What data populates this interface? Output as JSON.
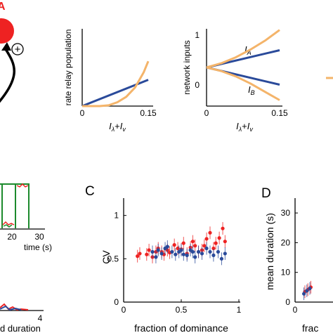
{
  "colors": {
    "red": "#ee2222",
    "blue": "#2a4a9a",
    "orange": "#f4b46a",
    "green": "#1c8a2c",
    "black": "#000000"
  },
  "panel_a": {
    "label": "A",
    "plus_sign": "+"
  },
  "panel_c": {
    "label": "C"
  },
  "panel_d": {
    "label": "D"
  },
  "fragments": {
    "time_label": "time (s)",
    "time_ticks": [
      "20",
      "30"
    ],
    "duration_label": "d duration",
    "duration_tick": "4"
  },
  "chart_data": [
    {
      "type": "line",
      "ylabel": "rate relay population",
      "xlabel_main": "I",
      "xlabel_sub1": "λ",
      "xlabel_plus": "+",
      "xlabel_sub2": "v",
      "xlim": [
        0,
        0.15
      ],
      "ylim": [
        0,
        1
      ],
      "xticks": [
        "0",
        "0.15"
      ],
      "series": [
        {
          "color": "blue",
          "x": [
            0,
            0.15
          ],
          "y": [
            0,
            0.34
          ]
        },
        {
          "color": "orange",
          "x": [
            0,
            0.04,
            0.06,
            0.08,
            0.1,
            0.12,
            0.14,
            0.15
          ],
          "y": [
            0,
            0,
            0.01,
            0.05,
            0.12,
            0.24,
            0.44,
            0.58
          ]
        }
      ]
    },
    {
      "type": "line",
      "ylabel": "network inputs",
      "xlabel_main": "I",
      "xlabel_sub1": "λ",
      "xlabel_plus": "+",
      "xlabel_sub2": "v",
      "xlim": [
        0,
        0.15
      ],
      "ylim": [
        -0.2,
        1.1
      ],
      "xticks": [
        "0",
        "0.15"
      ],
      "yticks": [
        "0",
        "1"
      ],
      "annotations": [
        {
          "main": "I",
          "sub": "A"
        },
        {
          "main": "I",
          "sub": "B"
        }
      ],
      "series": [
        {
          "color": "blue",
          "x": [
            0,
            0.15
          ],
          "y": [
            0.45,
            0.74
          ]
        },
        {
          "color": "blue",
          "x": [
            0,
            0.15
          ],
          "y": [
            0.45,
            0.16
          ]
        },
        {
          "color": "orange",
          "x": [
            0,
            0.03,
            0.06,
            0.09,
            0.12,
            0.15
          ],
          "y": [
            0.45,
            0.52,
            0.62,
            0.75,
            0.9,
            1.08
          ]
        },
        {
          "color": "orange",
          "x": [
            0,
            0.03,
            0.06,
            0.09,
            0.12,
            0.15
          ],
          "y": [
            0.45,
            0.39,
            0.3,
            0.18,
            0.04,
            -0.1
          ]
        }
      ]
    },
    {
      "type": "scatter",
      "ylabel": "CV",
      "xlabel": "fraction of dominance",
      "xlim": [
        0,
        1
      ],
      "ylim": [
        0,
        1.2
      ],
      "xticks": [
        "0",
        "0.5",
        "1"
      ],
      "yticks": [
        "0",
        "0.5",
        "1"
      ],
      "series": [
        {
          "color": "red",
          "points": [
            [
              0.12,
              0.53
            ],
            [
              0.14,
              0.56
            ],
            [
              0.2,
              0.55
            ],
            [
              0.22,
              0.6
            ],
            [
              0.25,
              0.52
            ],
            [
              0.28,
              0.58
            ],
            [
              0.3,
              0.62
            ],
            [
              0.33,
              0.58
            ],
            [
              0.35,
              0.55
            ],
            [
              0.38,
              0.6
            ],
            [
              0.4,
              0.57
            ],
            [
              0.44,
              0.66
            ],
            [
              0.47,
              0.62
            ],
            [
              0.5,
              0.61
            ],
            [
              0.52,
              0.68
            ],
            [
              0.55,
              0.56
            ],
            [
              0.58,
              0.63
            ],
            [
              0.6,
              0.7
            ],
            [
              0.62,
              0.65
            ],
            [
              0.65,
              0.58
            ],
            [
              0.68,
              0.6
            ],
            [
              0.7,
              0.65
            ],
            [
              0.72,
              0.73
            ],
            [
              0.75,
              0.8
            ],
            [
              0.78,
              0.62
            ],
            [
              0.8,
              0.68
            ],
            [
              0.83,
              0.74
            ],
            [
              0.86,
              0.85
            ],
            [
              0.88,
              0.7
            ]
          ]
        },
        {
          "color": "blue",
          "points": [
            [
              0.25,
              0.58
            ],
            [
              0.28,
              0.52
            ],
            [
              0.3,
              0.6
            ],
            [
              0.33,
              0.56
            ],
            [
              0.36,
              0.62
            ],
            [
              0.38,
              0.64
            ],
            [
              0.42,
              0.58
            ],
            [
              0.45,
              0.55
            ],
            [
              0.48,
              0.58
            ],
            [
              0.5,
              0.6
            ],
            [
              0.52,
              0.55
            ],
            [
              0.55,
              0.54
            ],
            [
              0.58,
              0.6
            ],
            [
              0.6,
              0.58
            ],
            [
              0.62,
              0.52
            ],
            [
              0.65,
              0.58
            ],
            [
              0.68,
              0.56
            ],
            [
              0.72,
              0.62
            ],
            [
              0.75,
              0.58
            ],
            [
              0.78,
              0.54
            ],
            [
              0.82,
              0.58
            ],
            [
              0.85,
              0.5
            ],
            [
              0.88,
              0.56
            ]
          ]
        }
      ]
    },
    {
      "type": "scatter",
      "ylabel": "mean duration (s)",
      "xlabel": "frac",
      "xlim": [
        0,
        1
      ],
      "ylim": [
        0,
        35
      ],
      "xticks": [
        "0"
      ],
      "yticks": [
        "0",
        "10",
        "20",
        "30"
      ],
      "series": [
        {
          "color": "red",
          "points": [
            [
              0.1,
              3.5
            ],
            [
              0.13,
              4.2
            ],
            [
              0.16,
              5
            ]
          ]
        },
        {
          "color": "blue",
          "points": [
            [
              0.09,
              2.8
            ],
            [
              0.12,
              3.8
            ],
            [
              0.15,
              4.6
            ]
          ]
        }
      ]
    }
  ]
}
